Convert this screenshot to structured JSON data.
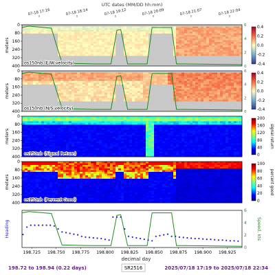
{
  "figure": {
    "top_axis_title": "UTC dates (MM/DD hh:mm)",
    "top_ticks": [
      "07-18 17:16",
      "07-18 18:14",
      "07-18 19:12",
      "07-18 20:09",
      "07-18 21:07",
      "07-18 22:04"
    ],
    "bottom_axis_title": "decimal day",
    "footer": {
      "left": "198.72 to 198.94 (0.22 days)",
      "center": "SR2516",
      "right": "2025/07/18 17:19 to 2025/07/18 22:34"
    }
  },
  "chart_data": [
    {
      "type": "heatmap",
      "title": "os150nb (E/W velocity)",
      "ylabel": "meters",
      "ylim": [
        400,
        0
      ],
      "yticks": [
        0,
        80,
        160,
        240,
        320,
        400
      ],
      "colorbar": {
        "min": -0.4,
        "max": 0.4,
        "ticks": [
          "0.4",
          "0.2",
          "0.0",
          "-0.2",
          "-0.4"
        ],
        "colormap": "RdYlBu_r"
      },
      "speed_overlay": {
        "label": "kts",
        "ylim": [
          0,
          6
        ],
        "ticks": [
          "0",
          "2",
          "4",
          "6"
        ]
      }
    },
    {
      "type": "heatmap",
      "title": "os150nb (N/S velocity)",
      "ylabel": "meters",
      "ylim": [
        400,
        0
      ],
      "yticks": [
        0,
        80,
        160,
        240,
        320,
        400
      ],
      "colorbar": {
        "min": -0.4,
        "max": 0.4,
        "ticks": [
          "0.4",
          "0.2",
          "0.0",
          "-0.2",
          "-0.4"
        ],
        "colormap": "RdYlBu_r"
      },
      "speed_overlay": {
        "label": "kts",
        "ylim": [
          0,
          6
        ],
        "ticks": [
          "0",
          "2",
          "4",
          "6"
        ]
      }
    },
    {
      "type": "heatmap",
      "title": "os150nb (Signal Return)",
      "ylabel": "meters",
      "ylim": [
        400,
        0
      ],
      "yticks": [
        0,
        80,
        160,
        240,
        320,
        400
      ],
      "colorbar": {
        "label": "signal return",
        "min": 0,
        "max": 200,
        "ticks": [
          "200",
          "160",
          "120",
          "80",
          "40",
          "0"
        ],
        "colormap": "jet"
      }
    },
    {
      "type": "heatmap",
      "title": "os150nb (Percent Good)",
      "ylabel": "meters",
      "ylim": [
        400,
        0
      ],
      "yticks": [
        0,
        80,
        160,
        240,
        320,
        400
      ],
      "colorbar": {
        "label": "percent good",
        "min": 0,
        "max": 100,
        "ticks": [
          "100",
          "80",
          "60",
          "40",
          "20",
          "0"
        ],
        "colormap": "jet"
      }
    },
    {
      "type": "line",
      "ylabel": "Heading",
      "ylabel_right": "Speed, kts",
      "xlim": [
        198.715,
        198.94
      ],
      "xticks": [
        "198.725",
        "198.750",
        "198.775",
        "198.800",
        "198.825",
        "198.850",
        "198.875",
        "198.900",
        "198.925"
      ],
      "right_ticks": [
        "0",
        "2",
        "4",
        "6"
      ],
      "speed": {
        "x": [
          198.715,
          198.722,
          198.745,
          198.756,
          198.79,
          198.806,
          198.812,
          198.816,
          198.823,
          198.843,
          198.848,
          198.868,
          198.873,
          198.882,
          198.94
        ],
        "y": [
          5.6,
          5.8,
          5.5,
          0.4,
          0.3,
          0.3,
          5.2,
          5.3,
          0.3,
          0.3,
          5.6,
          5.6,
          0.3,
          0.3,
          0.2
        ]
      },
      "heading": {
        "x": [
          198.716,
          198.72,
          198.724,
          198.728,
          198.732,
          198.736,
          198.74,
          198.744,
          198.748,
          198.752,
          198.756,
          198.76,
          198.764,
          198.768,
          198.772,
          198.776,
          198.78,
          198.784,
          198.788,
          198.792,
          198.796,
          198.8,
          198.804,
          198.808,
          198.812,
          198.816,
          198.82,
          198.824,
          198.828,
          198.832,
          198.836,
          198.84,
          198.844,
          198.848,
          198.852,
          198.856,
          198.86,
          198.864,
          198.868,
          198.872,
          198.876,
          198.88,
          198.884,
          198.888,
          198.892,
          198.896,
          198.9,
          198.904,
          198.908,
          198.912,
          198.916,
          198.92,
          198.924,
          198.928,
          198.932,
          198.936
        ],
        "y": [
          0.35,
          0.55,
          0.6,
          0.6,
          0.6,
          0.6,
          0.6,
          0.6,
          0.58,
          0.5,
          0.42,
          0.4,
          0.38,
          0.36,
          0.34,
          0.3,
          0.28,
          0.27,
          0.26,
          0.25,
          0.24,
          0.22,
          0.2,
          0.82,
          0.82,
          0.82,
          0.5,
          0.3,
          0.28,
          0.26,
          0.24,
          0.22,
          0.2,
          0.18,
          0.3,
          0.32,
          0.34,
          0.36,
          0.3,
          0.3,
          0.28,
          0.27,
          0.26,
          0.25,
          0.24,
          0.24,
          0.23,
          0.22,
          0.22,
          0.21,
          0.2,
          0.2,
          0.19,
          0.18,
          0.18,
          0.17
        ]
      }
    }
  ]
}
